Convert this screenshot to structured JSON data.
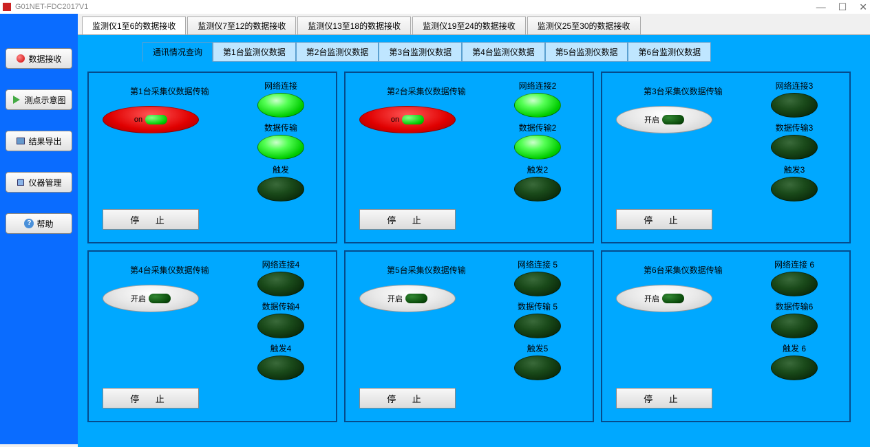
{
  "window": {
    "title": "G01NET-FDC2017V1"
  },
  "sidebar": {
    "items": [
      {
        "label": "数据接收",
        "icon": "red-dot"
      },
      {
        "label": "测点示意图",
        "icon": "play"
      },
      {
        "label": "结果导出",
        "icon": "box"
      },
      {
        "label": "仪器管理",
        "icon": "lock"
      },
      {
        "label": "帮助",
        "icon": "help"
      }
    ]
  },
  "top_tabs": [
    {
      "label": "监测仪1至6的数据接收",
      "active": true
    },
    {
      "label": "监测仪7至12的数据接收",
      "active": false
    },
    {
      "label": "监测仪13至18的数据接收",
      "active": false
    },
    {
      "label": "监测仪19至24的数据接收",
      "active": false
    },
    {
      "label": "监测仪25至30的数据接收",
      "active": false
    }
  ],
  "sub_tabs": [
    {
      "label": "通讯情况查询",
      "active": true
    },
    {
      "label": "第1台监测仪数据",
      "active": false
    },
    {
      "label": "第2台监测仪数据",
      "active": false
    },
    {
      "label": "第3台监测仪数据",
      "active": false
    },
    {
      "label": "第4台监测仪数据",
      "active": false
    },
    {
      "label": "第5台监测仪数据",
      "active": false
    },
    {
      "label": "第6台监测仪数据",
      "active": false
    }
  ],
  "panels": [
    {
      "title": "第1台采集仪数据传输",
      "toggle_label": "on",
      "toggle_on": true,
      "indicators": [
        {
          "label": "网络连接",
          "on": true
        },
        {
          "label": "数据传输",
          "on": true
        },
        {
          "label": "触发",
          "on": false
        }
      ],
      "stop_label": "停    止"
    },
    {
      "title": "第2台采集仪数据传输",
      "toggle_label": "on",
      "toggle_on": true,
      "indicators": [
        {
          "label": "网络连接2",
          "on": true
        },
        {
          "label": "数据传输2",
          "on": true
        },
        {
          "label": "触发2",
          "on": false
        }
      ],
      "stop_label": "停    止"
    },
    {
      "title": "第3台采集仪数据传输",
      "toggle_label": "开启",
      "toggle_on": false,
      "indicators": [
        {
          "label": "网络连接3",
          "on": false
        },
        {
          "label": "数据传输3",
          "on": false
        },
        {
          "label": "触发3",
          "on": false
        }
      ],
      "stop_label": "停    止"
    },
    {
      "title": "第4台采集仪数据传输",
      "toggle_label": "开启",
      "toggle_on": false,
      "indicators": [
        {
          "label": "网络连接4",
          "on": false
        },
        {
          "label": "数据传输4",
          "on": false
        },
        {
          "label": "触发4",
          "on": false
        }
      ],
      "stop_label": "停    止"
    },
    {
      "title": "第5台采集仪数据传输",
      "toggle_label": "开启",
      "toggle_on": false,
      "indicators": [
        {
          "label": "网络连接 5",
          "on": false
        },
        {
          "label": "数据传输 5",
          "on": false
        },
        {
          "label": "触发5",
          "on": false
        }
      ],
      "stop_label": "停    止"
    },
    {
      "title": "第6台采集仪数据传输",
      "toggle_label": "开启",
      "toggle_on": false,
      "indicators": [
        {
          "label": "网络连接 6",
          "on": false
        },
        {
          "label": "数据传输6",
          "on": false
        },
        {
          "label": "触发 6",
          "on": false
        }
      ],
      "stop_label": "停    止"
    }
  ],
  "colors": {
    "sidebar_bg": "#0a6cff",
    "content_bg": "#00a8ff",
    "panel_border": "#054b8c",
    "toggle_on_bg": "#e00000",
    "toggle_off_bg": "#e8e8e8",
    "light_on": "#00cc00",
    "light_off": "#0a2a0a"
  }
}
